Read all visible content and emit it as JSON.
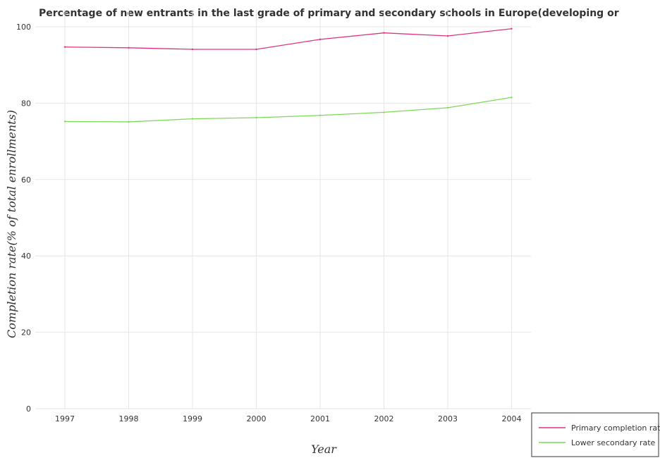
{
  "chart_data": {
    "type": "line",
    "title": "Percentage of new entrants in the last grade of primary  and secondary schools in Europe(developing or",
    "xlabel": "Year",
    "ylabel": "Completion rate(% of total enrollments)",
    "categories": [
      "1997",
      "1998",
      "1999",
      "2000",
      "2001",
      "2002",
      "2003",
      "2004"
    ],
    "ylim": [
      0,
      100
    ],
    "yticks": [
      "0",
      "20",
      "40",
      "60",
      "80",
      "100"
    ],
    "grid": true,
    "legend_position": "bottom-right",
    "series": [
      {
        "name": "Primary completion rate",
        "color": "#e0337f",
        "values": [
          94.7,
          94.5,
          94.1,
          94.1,
          96.7,
          98.4,
          97.6,
          99.5
        ]
      },
      {
        "name": "Lower secondary rate",
        "color": "#7ed957",
        "values": [
          75.2,
          75.1,
          75.9,
          76.2,
          76.8,
          77.6,
          78.8,
          81.5
        ]
      }
    ]
  }
}
